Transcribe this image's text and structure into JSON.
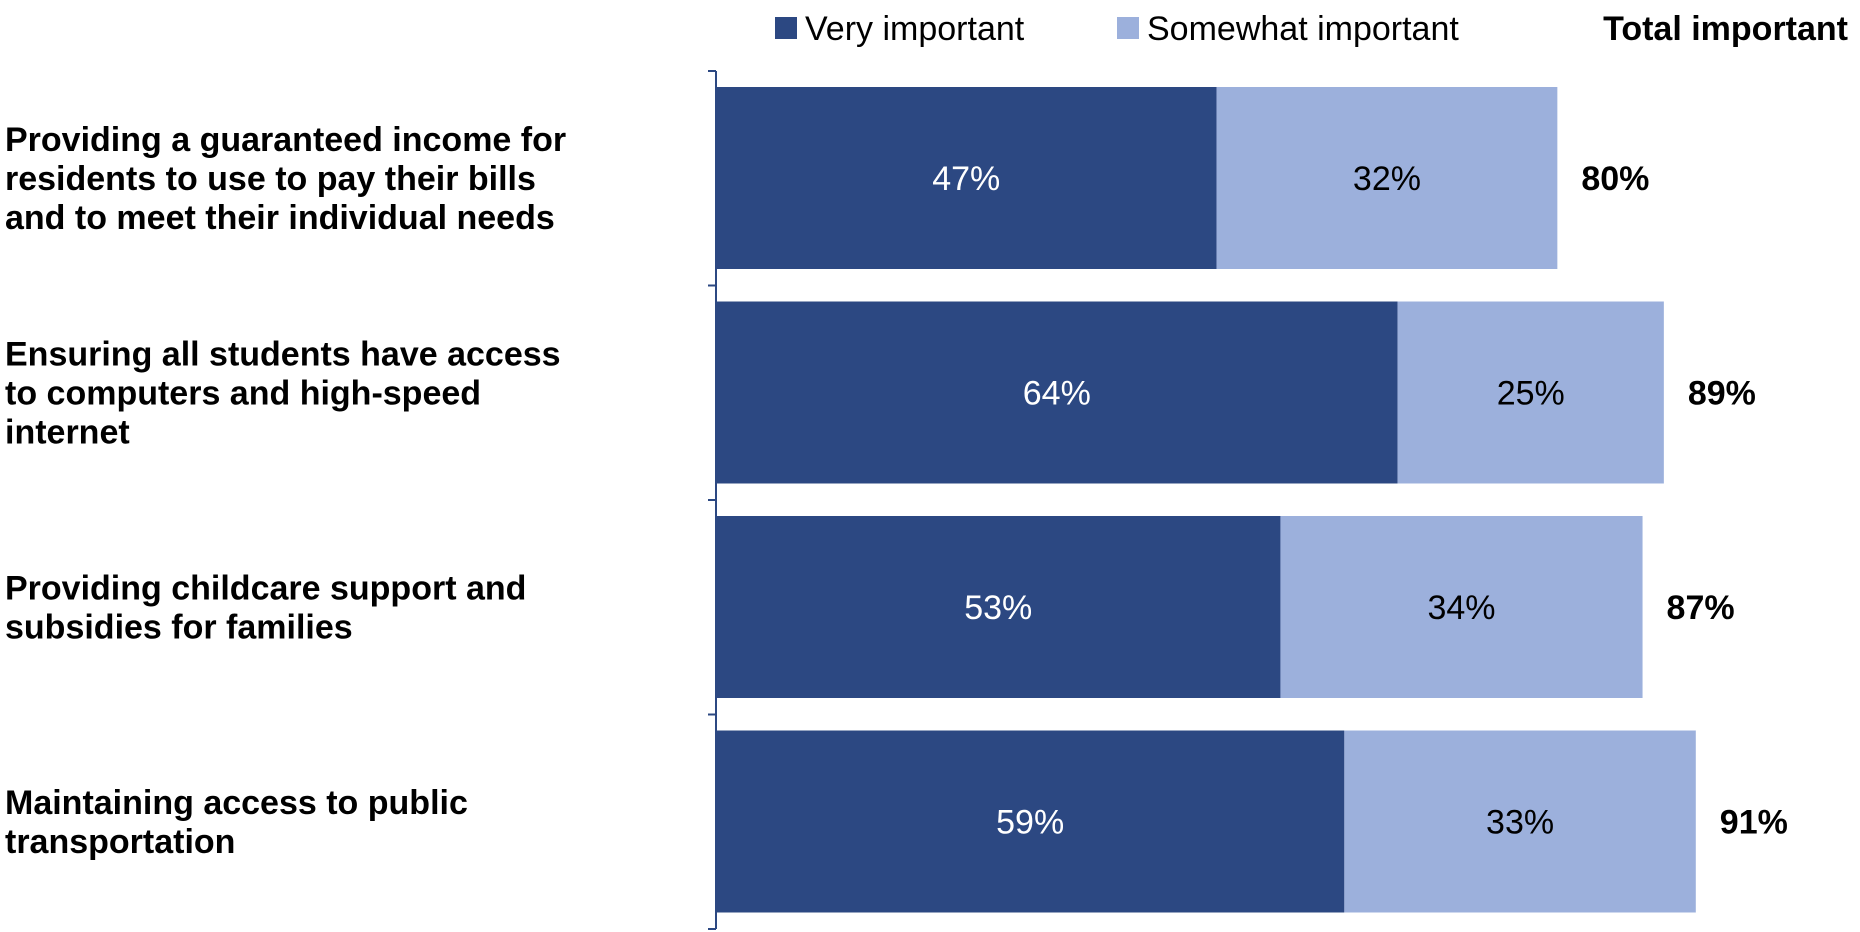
{
  "chart_data": {
    "type": "bar",
    "orientation": "horizontal",
    "stacked": true,
    "categories": [
      "Providing a guaranteed income for residents to use to pay their bills and to meet their individual needs",
      "Ensuring all students have access to computers and high-speed internet",
      "Providing childcare support and subsidies for families",
      "Maintaining access to public transportation"
    ],
    "category_lines": [
      [
        "Providing a guaranteed income for",
        "residents to use to pay their bills",
        "and to meet their individual needs"
      ],
      [
        "Ensuring all students have access",
        "to computers and high-speed",
        "internet"
      ],
      [
        "Providing childcare support and",
        "subsidies for families"
      ],
      [
        "Maintaining access to public",
        "transportation"
      ]
    ],
    "series": [
      {
        "name": "Very important",
        "values": [
          47,
          64,
          53,
          59
        ],
        "labels": [
          "47%",
          "64%",
          "53%",
          "59%"
        ],
        "color": "#2c4882",
        "label_color": "#ffffff"
      },
      {
        "name": "Somewhat important",
        "values": [
          32,
          25,
          34,
          33
        ],
        "labels": [
          "32%",
          "25%",
          "34%",
          "33%"
        ],
        "color": "#9cb0dc",
        "label_color": "#000000"
      }
    ],
    "totals_header": "Total important",
    "totals": [
      "80%",
      "89%",
      "87%",
      "91%"
    ],
    "xlim": [
      0,
      100
    ],
    "grid": false,
    "legend_position": "top"
  }
}
